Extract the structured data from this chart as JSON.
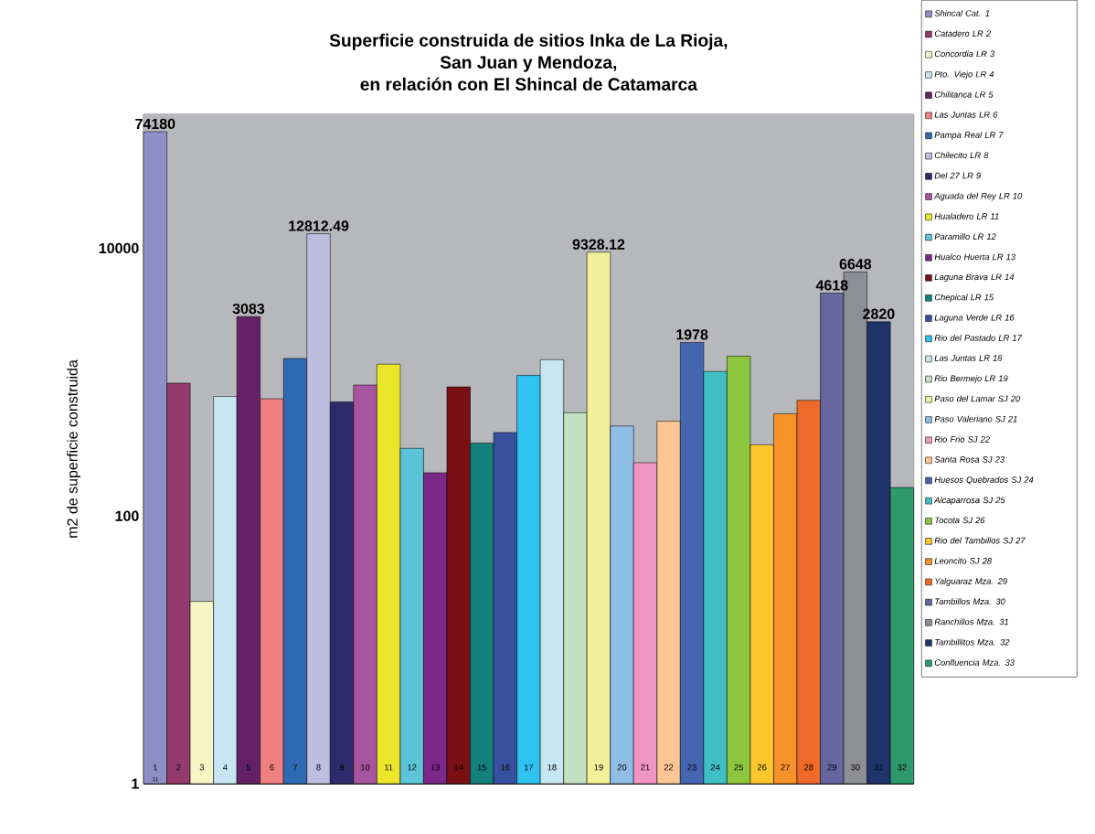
{
  "chart_data": {
    "type": "bar",
    "title": "Superficie construida de sitios Inka de La Rioja,\nSan Juan y Mendoza,\nen relación con El Shincal de Catamarca",
    "ylabel": "m2 de superficie construida",
    "categories": [
      "1",
      "2",
      "3",
      "4",
      "5",
      "6",
      "7",
      "8",
      "9",
      "10",
      "11",
      "12",
      "13",
      "14",
      "15",
      "16",
      "17",
      "18",
      null,
      "19",
      "20",
      "21",
      "22",
      "23",
      "24",
      "25",
      "26",
      "27",
      "28",
      "29",
      "30",
      "31",
      "32"
    ],
    "log": "y",
    "ylim": [
      1,
      100000
    ],
    "yticks": [
      1,
      100,
      10000
    ],
    "grid": "y",
    "legend": "right",
    "value_labels": [
      "74180",
      null,
      null,
      null,
      "3083",
      null,
      null,
      "12812.49",
      null,
      null,
      null,
      null,
      null,
      null,
      null,
      null,
      null,
      null,
      null,
      "9328.12",
      null,
      null,
      null,
      "1978",
      null,
      null,
      null,
      null,
      null,
      "4618",
      "6648",
      "2820",
      null
    ],
    "annotations": [
      "11"
    ],
    "series": [
      {
        "name": "Shincal Cat. 1",
        "color": "#8f8fc8",
        "values": [
          74180,
          null,
          null,
          null,
          null,
          null,
          null,
          null,
          null,
          null,
          null,
          null,
          null,
          null,
          null,
          null,
          null,
          null,
          null,
          null,
          null,
          null,
          null,
          null,
          null,
          null,
          null,
          null,
          null,
          null,
          null,
          null,
          null
        ]
      },
      {
        "name": "Catadero LR 2",
        "color": "#943a6c",
        "values": [
          null,
          980,
          null,
          null,
          null,
          null,
          null,
          null,
          null,
          null,
          null,
          null,
          null,
          null,
          null,
          null,
          null,
          null,
          null,
          null,
          null,
          null,
          null,
          null,
          null,
          null,
          null,
          null,
          null,
          null,
          null,
          null,
          null
        ]
      },
      {
        "name": "Concordia LR 3",
        "color": "#f8f5c5",
        "values": [
          null,
          null,
          23,
          null,
          null,
          null,
          null,
          null,
          null,
          null,
          null,
          null,
          null,
          null,
          null,
          null,
          null,
          null,
          null,
          null,
          null,
          null,
          null,
          null,
          null,
          null,
          null,
          null,
          null,
          null,
          null,
          null,
          null
        ]
      },
      {
        "name": "Pto. Viejo LR 4",
        "color": "#c7e6f2",
        "values": [
          null,
          null,
          null,
          780,
          null,
          null,
          null,
          null,
          null,
          null,
          null,
          null,
          null,
          null,
          null,
          null,
          null,
          null,
          null,
          null,
          null,
          null,
          null,
          null,
          null,
          null,
          null,
          null,
          null,
          null,
          null,
          null,
          null
        ]
      },
      {
        "name": "Chilitanca LR 5",
        "color": "#642166",
        "values": [
          null,
          null,
          null,
          null,
          3083,
          null,
          null,
          null,
          null,
          null,
          null,
          null,
          null,
          null,
          null,
          null,
          null,
          null,
          null,
          null,
          null,
          null,
          null,
          null,
          null,
          null,
          null,
          null,
          null,
          null,
          null,
          null,
          null
        ]
      },
      {
        "name": "Las Juntas LR 6",
        "color": "#f08080",
        "values": [
          null,
          null,
          null,
          null,
          null,
          750,
          null,
          null,
          null,
          null,
          null,
          null,
          null,
          null,
          null,
          null,
          null,
          null,
          null,
          null,
          null,
          null,
          null,
          null,
          null,
          null,
          null,
          null,
          null,
          null,
          null,
          null,
          null
        ]
      },
      {
        "name": "Pampa Real LR 7",
        "color": "#2d6ab3",
        "values": [
          null,
          null,
          null,
          null,
          null,
          null,
          1500,
          null,
          null,
          null,
          null,
          null,
          null,
          null,
          null,
          null,
          null,
          null,
          null,
          null,
          null,
          null,
          null,
          null,
          null,
          null,
          null,
          null,
          null,
          null,
          null,
          null,
          null
        ]
      },
      {
        "name": "Chilecito LR 8",
        "color": "#bdbde0",
        "values": [
          null,
          null,
          null,
          null,
          null,
          null,
          null,
          12812.49,
          null,
          null,
          null,
          null,
          null,
          null,
          null,
          null,
          null,
          null,
          null,
          null,
          null,
          null,
          null,
          null,
          null,
          null,
          null,
          null,
          null,
          null,
          null,
          null,
          null
        ]
      },
      {
        "name": "Del 27 LR 9",
        "color": "#2f2a6b",
        "values": [
          null,
          null,
          null,
          null,
          null,
          null,
          null,
          null,
          710,
          null,
          null,
          null,
          null,
          null,
          null,
          null,
          null,
          null,
          null,
          null,
          null,
          null,
          null,
          null,
          null,
          null,
          null,
          null,
          null,
          null,
          null,
          null,
          null
        ]
      },
      {
        "name": "Aguada del Rey LR 10",
        "color": "#a855a0",
        "values": [
          null,
          null,
          null,
          null,
          null,
          null,
          null,
          null,
          null,
          950,
          null,
          null,
          null,
          null,
          null,
          null,
          null,
          null,
          null,
          null,
          null,
          null,
          null,
          null,
          null,
          null,
          null,
          null,
          null,
          null,
          null,
          null,
          null
        ]
      },
      {
        "name": "Hualadero LR 11",
        "color": "#ece62a",
        "values": [
          null,
          null,
          null,
          null,
          null,
          null,
          null,
          null,
          null,
          null,
          1360,
          null,
          null,
          null,
          null,
          null,
          null,
          null,
          null,
          null,
          null,
          null,
          null,
          null,
          null,
          null,
          null,
          null,
          null,
          null,
          null,
          null,
          null
        ]
      },
      {
        "name": "Paramillo LR 12",
        "color": "#5bc4d8",
        "values": [
          null,
          null,
          null,
          null,
          null,
          null,
          null,
          null,
          null,
          null,
          null,
          320,
          null,
          null,
          null,
          null,
          null,
          null,
          null,
          null,
          null,
          null,
          null,
          null,
          null,
          null,
          null,
          null,
          null,
          null,
          null,
          null,
          null
        ]
      },
      {
        "name": "Hualco Huerta LR 13",
        "color": "#7d2789",
        "values": [
          null,
          null,
          null,
          null,
          null,
          null,
          null,
          null,
          null,
          null,
          null,
          null,
          210,
          null,
          null,
          null,
          null,
          null,
          null,
          null,
          null,
          null,
          null,
          null,
          null,
          null,
          null,
          null,
          null,
          null,
          null,
          null,
          null
        ]
      },
      {
        "name": "Laguna Brava LR 14",
        "color": "#7a1015",
        "values": [
          null,
          null,
          null,
          null,
          null,
          null,
          null,
          null,
          null,
          null,
          null,
          null,
          null,
          920,
          null,
          null,
          null,
          null,
          null,
          null,
          null,
          null,
          null,
          null,
          null,
          null,
          null,
          null,
          null,
          null,
          null,
          null,
          null
        ]
      },
      {
        "name": "Chepical LR 15",
        "color": "#14807c",
        "values": [
          null,
          null,
          null,
          null,
          null,
          null,
          null,
          null,
          null,
          null,
          null,
          null,
          null,
          null,
          350,
          null,
          null,
          null,
          null,
          null,
          null,
          null,
          null,
          null,
          null,
          null,
          null,
          null,
          null,
          null,
          null,
          null,
          null
        ]
      },
      {
        "name": "Laguna Verde LR 16",
        "color": "#3751a0",
        "values": [
          null,
          null,
          null,
          null,
          null,
          null,
          null,
          null,
          null,
          null,
          null,
          null,
          null,
          null,
          null,
          420,
          null,
          null,
          null,
          null,
          null,
          null,
          null,
          null,
          null,
          null,
          null,
          null,
          null,
          null,
          null,
          null,
          null
        ]
      },
      {
        "name": "Rio del Pastado LR 17",
        "color": "#2ec3f0",
        "values": [
          null,
          null,
          null,
          null,
          null,
          null,
          null,
          null,
          null,
          null,
          null,
          null,
          null,
          null,
          null,
          null,
          1120,
          null,
          null,
          null,
          null,
          null,
          null,
          null,
          null,
          null,
          null,
          null,
          null,
          null,
          null,
          null,
          null
        ]
      },
      {
        "name": "Las Juntas LR 18",
        "color": "#c5e6f2",
        "values": [
          null,
          null,
          null,
          null,
          null,
          null,
          null,
          null,
          null,
          null,
          null,
          null,
          null,
          null,
          null,
          null,
          null,
          1470,
          null,
          null,
          null,
          null,
          null,
          null,
          null,
          null,
          null,
          null,
          null,
          null,
          null,
          null,
          null
        ]
      },
      {
        "name": "Rio Bermejo LR 19",
        "color": "#c3e0c0",
        "values": [
          null,
          null,
          null,
          null,
          null,
          null,
          null,
          null,
          null,
          null,
          null,
          null,
          null,
          null,
          null,
          null,
          null,
          null,
          590,
          null,
          null,
          null,
          null,
          null,
          null,
          null,
          null,
          null,
          null,
          null,
          null,
          null,
          null
        ]
      },
      {
        "name": "Paso del Lamar SJ 20",
        "color": "#f2f19a",
        "values": [
          null,
          null,
          null,
          null,
          null,
          null,
          null,
          null,
          null,
          null,
          null,
          null,
          null,
          null,
          null,
          null,
          null,
          null,
          null,
          9328.12,
          null,
          null,
          null,
          null,
          null,
          null,
          null,
          null,
          null,
          null,
          null,
          null,
          null
        ]
      },
      {
        "name": "Paso Valeriano SJ 21",
        "color": "#8ebde6",
        "values": [
          null,
          null,
          null,
          null,
          null,
          null,
          null,
          null,
          null,
          null,
          null,
          null,
          null,
          null,
          null,
          null,
          null,
          null,
          null,
          null,
          470,
          null,
          null,
          null,
          null,
          null,
          null,
          null,
          null,
          null,
          null,
          null,
          null
        ]
      },
      {
        "name": "Rio Frio SJ 22",
        "color": "#f195c3",
        "values": [
          null,
          null,
          null,
          null,
          null,
          null,
          null,
          null,
          null,
          null,
          null,
          null,
          null,
          null,
          null,
          null,
          null,
          null,
          null,
          null,
          null,
          250,
          null,
          null,
          null,
          null,
          null,
          null,
          null,
          null,
          null,
          null,
          null
        ]
      },
      {
        "name": "Santa Rosa SJ 23",
        "color": "#fcc593",
        "values": [
          null,
          null,
          null,
          null,
          null,
          null,
          null,
          null,
          null,
          null,
          null,
          null,
          null,
          null,
          null,
          null,
          null,
          null,
          null,
          null,
          null,
          null,
          510,
          null,
          null,
          null,
          null,
          null,
          null,
          null,
          null,
          null,
          null
        ]
      },
      {
        "name": "Huesos Quebrados SJ 24",
        "color": "#4466b0",
        "values": [
          null,
          null,
          null,
          null,
          null,
          null,
          null,
          null,
          null,
          null,
          null,
          null,
          null,
          null,
          null,
          null,
          null,
          null,
          null,
          null,
          null,
          null,
          null,
          1978,
          null,
          null,
          null,
          null,
          null,
          null,
          null,
          null,
          null
        ]
      },
      {
        "name": "Alcaparrosa SJ 25",
        "color": "#3fbfc5",
        "values": [
          null,
          null,
          null,
          null,
          null,
          null,
          null,
          null,
          null,
          null,
          null,
          null,
          null,
          null,
          null,
          null,
          null,
          null,
          null,
          null,
          null,
          null,
          null,
          null,
          1200,
          null,
          null,
          null,
          null,
          null,
          null,
          null,
          null
        ]
      },
      {
        "name": "Tocota SJ 26",
        "color": "#8cc63f",
        "values": [
          null,
          null,
          null,
          null,
          null,
          null,
          null,
          null,
          null,
          null,
          null,
          null,
          null,
          null,
          null,
          null,
          null,
          null,
          null,
          null,
          null,
          null,
          null,
          null,
          null,
          1560,
          null,
          null,
          null,
          null,
          null,
          null,
          null
        ]
      },
      {
        "name": "Rio del Tambillos SJ 27",
        "color": "#fdc72c",
        "values": [
          null,
          null,
          null,
          null,
          null,
          null,
          null,
          null,
          null,
          null,
          null,
          null,
          null,
          null,
          null,
          null,
          null,
          null,
          null,
          null,
          null,
          null,
          null,
          null,
          null,
          null,
          340,
          null,
          null,
          null,
          null,
          null,
          null
        ]
      },
      {
        "name": "Leoncito SJ 28",
        "color": "#f7922b",
        "values": [
          null,
          null,
          null,
          null,
          null,
          null,
          null,
          null,
          null,
          null,
          null,
          null,
          null,
          null,
          null,
          null,
          null,
          null,
          null,
          null,
          null,
          null,
          null,
          null,
          null,
          null,
          null,
          580,
          null,
          null,
          null,
          null,
          null
        ]
      },
      {
        "name": "Yalguaraz Mza. 29",
        "color": "#ef6a29",
        "values": [
          null,
          null,
          null,
          null,
          null,
          null,
          null,
          null,
          null,
          null,
          null,
          null,
          null,
          null,
          null,
          null,
          null,
          null,
          null,
          null,
          null,
          null,
          null,
          null,
          null,
          null,
          null,
          null,
          730,
          null,
          null,
          null,
          null
        ]
      },
      {
        "name": "Tambillos Mza. 30",
        "color": "#6466a0",
        "values": [
          null,
          null,
          null,
          null,
          null,
          null,
          null,
          null,
          null,
          null,
          null,
          null,
          null,
          null,
          null,
          null,
          null,
          null,
          null,
          null,
          null,
          null,
          null,
          null,
          null,
          null,
          null,
          null,
          null,
          4618,
          null,
          null,
          null
        ]
      },
      {
        "name": "Ranchillos Mza. 31",
        "color": "#8e8f95",
        "values": [
          null,
          null,
          null,
          null,
          null,
          null,
          null,
          null,
          null,
          null,
          null,
          null,
          null,
          null,
          null,
          null,
          null,
          null,
          null,
          null,
          null,
          null,
          null,
          null,
          null,
          null,
          null,
          null,
          null,
          null,
          6648,
          null,
          null
        ]
      },
      {
        "name": "Tambillitos Mza. 32",
        "color": "#1e346a",
        "values": [
          null,
          null,
          null,
          null,
          null,
          null,
          null,
          null,
          null,
          null,
          null,
          null,
          null,
          null,
          null,
          null,
          null,
          null,
          null,
          null,
          null,
          null,
          null,
          null,
          null,
          null,
          null,
          null,
          null,
          null,
          null,
          2820,
          null
        ]
      },
      {
        "name": "Confluencia Mza. 33",
        "color": "#2e9a6c",
        "values": [
          null,
          null,
          null,
          null,
          null,
          null,
          null,
          null,
          null,
          null,
          null,
          null,
          null,
          null,
          null,
          null,
          null,
          null,
          null,
          null,
          null,
          null,
          null,
          null,
          null,
          null,
          null,
          null,
          null,
          null,
          null,
          null,
          163
        ]
      }
    ]
  }
}
